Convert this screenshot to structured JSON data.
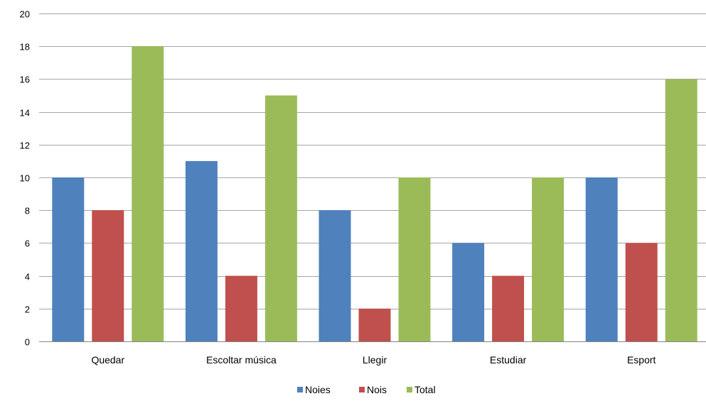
{
  "chart_data": {
    "type": "bar",
    "title": "",
    "xlabel": "",
    "ylabel": "",
    "categories": [
      "Quedar",
      "Escoltar música",
      "Llegir",
      "Estudiar",
      "Esport"
    ],
    "series": [
      {
        "name": "Noies",
        "color": "#4f81bd",
        "values": [
          10,
          11,
          8,
          6,
          10
        ]
      },
      {
        "name": "Nois",
        "color": "#c0504d",
        "values": [
          8,
          4,
          2,
          4,
          6
        ]
      },
      {
        "name": "Total",
        "color": "#9bbb59",
        "values": [
          18,
          15,
          10,
          10,
          16
        ]
      }
    ],
    "ylim": [
      0,
      20
    ],
    "yticks": [
      "0",
      "2",
      "4",
      "6",
      "8",
      "10",
      "12",
      "14",
      "16",
      "18",
      "20"
    ],
    "grid": true,
    "legend_position": "bottom"
  }
}
